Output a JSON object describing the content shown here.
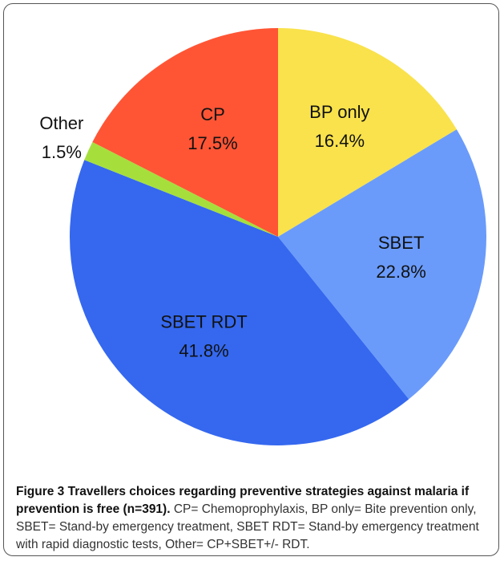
{
  "chart_data": {
    "type": "pie",
    "categories": [
      "BP only",
      "SBET",
      "SBET RDT",
      "Other",
      "CP"
    ],
    "values": [
      16.4,
      22.8,
      41.8,
      1.5,
      17.5
    ],
    "value_labels": [
      "16.4%",
      "22.8%",
      "41.8%",
      "1.5%",
      "17.5%"
    ],
    "colors": [
      "#f9e24c",
      "#6a9bfb",
      "#3568ef",
      "#a6df3c",
      "#ff5535"
    ]
  },
  "caption": {
    "label": "Figure 3",
    "title": "Travellers choices regarding preventive strategies against malaria if prevention is free (n=391).",
    "text": "CP= Chemoprophylaxis, BP only= Bite prevention only, SBET= Stand-by emergency treatment, SBET RDT= Stand-by emergency treatment with rapid diagnostic tests, Other= CP+SBET+/- RDT."
  }
}
